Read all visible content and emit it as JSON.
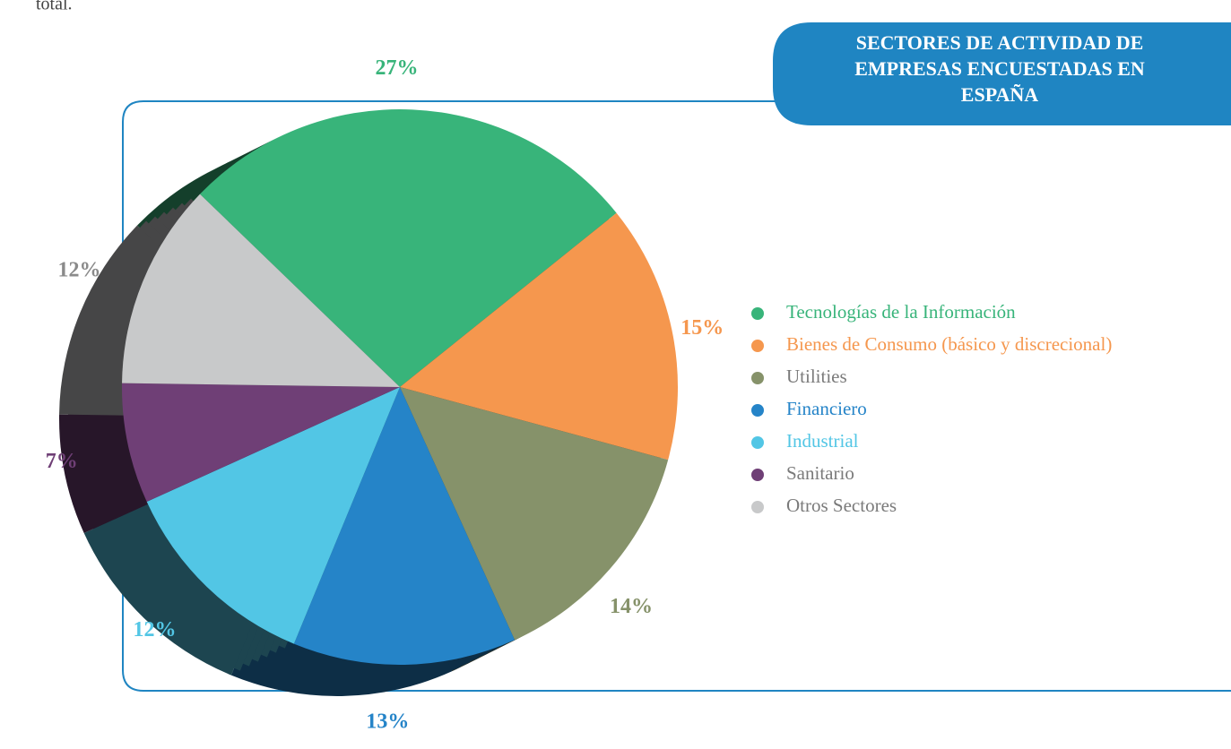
{
  "text_fragment": "total.",
  "chart_data": {
    "type": "pie",
    "title_lines": [
      "SECTORES DE ACTIVIDAD DE",
      "EMPRESAS ENCUESTADAS EN",
      "ESPAÑA"
    ],
    "categories": [
      "Tecnologías de la Información",
      "Bienes de Consumo (básico y discrecional)",
      "Utilities",
      "Financiero",
      "Industrial",
      "Sanitario",
      "Otros Sectores"
    ],
    "values": [
      27,
      15,
      14,
      13,
      12,
      7,
      12
    ],
    "value_labels": [
      "27%",
      "15%",
      "14%",
      "13%",
      "12%",
      "7%",
      "12%"
    ],
    "colors": [
      "#38b47a",
      "#f5974e",
      "#86926a",
      "#2584c8",
      "#52c6e5",
      "#6f3f76",
      "#c8c9ca"
    ],
    "legend_text_colors": [
      "#38b47a",
      "#f5974e",
      "#7a7a7a",
      "#2584c8",
      "#52c6e5",
      "#7a7a7a",
      "#7a7a7a"
    ],
    "label_colors": [
      "#38b47a",
      "#f5974e",
      "#86926a",
      "#2584c8",
      "#52c6e5",
      "#6f3f76",
      "#8a8a8a"
    ],
    "start_angle": -46
  }
}
